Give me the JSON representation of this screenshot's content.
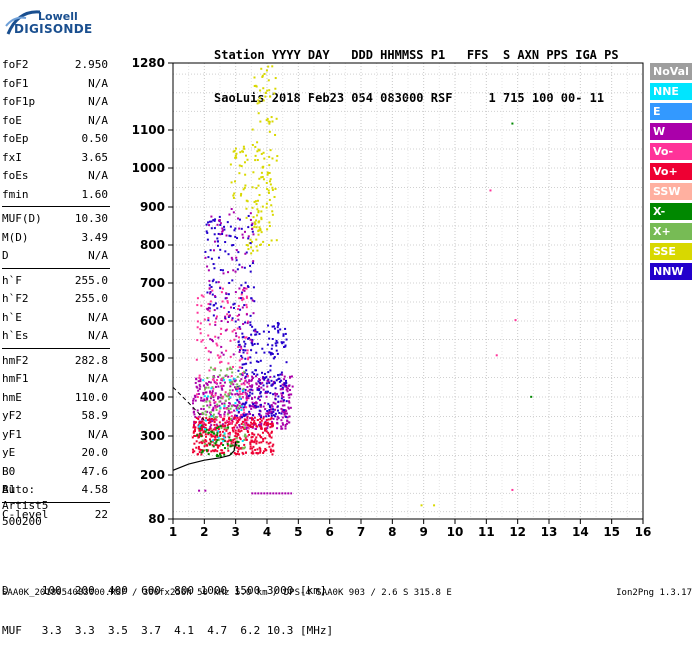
{
  "logo": {
    "line1": "Lowell",
    "line2": "DIGISONDE"
  },
  "header": {
    "line1": "Station YYYY DAY   DDD HHMMSS P1   FFS  S AXN PPS IGA PS",
    "line2": "SaoLuis 2018 Feb23 054 083000 RSF     1 715 100 00- 11"
  },
  "params": [
    {
      "name": "foF2",
      "value": "2.950"
    },
    {
      "name": "foF1",
      "value": "N/A"
    },
    {
      "name": "foF1p",
      "value": "N/A"
    },
    {
      "name": "foE",
      "value": "N/A"
    },
    {
      "name": "foEp",
      "value": "0.50"
    },
    {
      "name": "fxI",
      "value": "3.65"
    },
    {
      "name": "foEs",
      "value": "N/A"
    },
    {
      "name": "fmin",
      "value": "1.60"
    },
    {
      "name": "MUF(D)",
      "value": "10.30"
    },
    {
      "name": "M(D)",
      "value": "3.49"
    },
    {
      "name": "D",
      "value": "N/A"
    },
    {
      "name": "h`F",
      "value": "255.0"
    },
    {
      "name": "h`F2",
      "value": "255.0"
    },
    {
      "name": "h`E",
      "value": "N/A"
    },
    {
      "name": "h`Es",
      "value": "N/A"
    },
    {
      "name": "hmF2",
      "value": "282.8"
    },
    {
      "name": "hmF1",
      "value": "N/A"
    },
    {
      "name": "hmE",
      "value": "110.0"
    },
    {
      "name": "yF2",
      "value": "58.9"
    },
    {
      "name": "yF1",
      "value": "N/A"
    },
    {
      "name": "yE",
      "value": "20.0"
    },
    {
      "name": "B0",
      "value": "47.6"
    },
    {
      "name": "B1",
      "value": "4.58"
    },
    {
      "name": "C-level",
      "value": "22"
    }
  ],
  "artist": {
    "line1": "Auto:",
    "line2": "Artist5",
    "line3": "500200"
  },
  "legend": [
    {
      "label": "NoVal",
      "color": "#9e9e9e"
    },
    {
      "label": "NNE",
      "color": "#00e5ff"
    },
    {
      "label": "E",
      "color": "#3399ff"
    },
    {
      "label": "W",
      "color": "#aa00aa"
    },
    {
      "label": "Vo-",
      "color": "#ff3399"
    },
    {
      "label": "Vo+",
      "color": "#ee0033"
    },
    {
      "label": "SSW",
      "color": "#ffb0a0"
    },
    {
      "label": "X-",
      "color": "#008800"
    },
    {
      "label": "X+",
      "color": "#77bb55"
    },
    {
      "label": "SSE",
      "color": "#d8d800"
    },
    {
      "label": "NNW",
      "color": "#2200cc"
    }
  ],
  "muf_table": {
    "line1": "D     100  200  400  600  800 1000 1500 3000 [km]",
    "line2": "MUF   3.3  3.3  3.5  3.7  4.1  4.7  6.2 10.3 [MHz]"
  },
  "footer": "SAA0K_2018054083000.RSF / 300fx256h 50 kHz 5.0 km / DPS-4 SAA0K 903 / 2.6 S 315.8 E",
  "version": "Ion2Png 1.3.17",
  "chart_data": {
    "type": "scatter",
    "xlim": [
      1,
      16
    ],
    "ylim": [
      80,
      1280
    ],
    "xticks": [
      "1",
      "2",
      "3",
      "4",
      "5",
      "6",
      "7",
      "8",
      "9",
      "10",
      "11",
      "12",
      "13",
      "14",
      "15",
      "16"
    ],
    "yticks": [
      "80",
      "200",
      "300",
      "400",
      "500",
      "600",
      "700",
      "800",
      "900",
      "1000",
      "1100",
      "1280"
    ],
    "grid": true,
    "profile_curve": [
      [
        1.0,
        212
      ],
      [
        1.5,
        228
      ],
      [
        2.0,
        238
      ],
      [
        2.5,
        244
      ],
      [
        2.8,
        250
      ],
      [
        2.95,
        262
      ],
      [
        3.0,
        285
      ]
    ],
    "trace_curve": [
      [
        1.0,
        425
      ],
      [
        1.5,
        385
      ],
      [
        1.8,
        360
      ],
      [
        2.0,
        340
      ]
    ],
    "clusters": [
      {
        "direction": "SSE",
        "xmin": 3.5,
        "xmax": 4.3,
        "ymin": 800,
        "ymax": 1275,
        "count": 110
      },
      {
        "direction": "SSE",
        "xmin": 2.8,
        "xmax": 3.4,
        "ymin": 920,
        "ymax": 1060,
        "count": 30
      },
      {
        "direction": "SSE",
        "xmin": 3.3,
        "xmax": 3.8,
        "ymin": 780,
        "ymax": 920,
        "count": 40
      },
      {
        "direction": "W",
        "xmin": 1.6,
        "xmax": 4.8,
        "ymin": 320,
        "ymax": 460,
        "count": 420
      },
      {
        "direction": "NNW",
        "xmin": 3.0,
        "xmax": 4.6,
        "ymin": 350,
        "ymax": 600,
        "count": 220
      },
      {
        "direction": "Vo+",
        "xmin": 1.6,
        "xmax": 4.2,
        "ymin": 255,
        "ymax": 350,
        "count": 380
      },
      {
        "direction": "Vo-",
        "xmin": 1.7,
        "xmax": 3.4,
        "ymin": 300,
        "ymax": 700,
        "count": 160
      },
      {
        "direction": "X+",
        "xmin": 1.9,
        "xmax": 3.3,
        "ymin": 270,
        "ymax": 480,
        "count": 90
      },
      {
        "direction": "X-",
        "xmin": 1.6,
        "xmax": 3.1,
        "ymin": 250,
        "ymax": 330,
        "count": 50
      },
      {
        "direction": "NNW",
        "xmin": 2.0,
        "xmax": 3.6,
        "ymin": 600,
        "ymax": 880,
        "count": 110
      },
      {
        "direction": "W",
        "xmin": 2.0,
        "xmax": 3.6,
        "ymin": 500,
        "ymax": 900,
        "count": 90
      },
      {
        "direction": "NNE",
        "xmin": 1.8,
        "xmax": 3.2,
        "ymin": 280,
        "ymax": 450,
        "count": 30
      }
    ],
    "points": [
      {
        "x": 11.8,
        "y": 1120,
        "direction": "X-"
      },
      {
        "x": 11.1,
        "y": 945,
        "direction": "Vo-"
      },
      {
        "x": 11.9,
        "y": 605,
        "direction": "Vo-"
      },
      {
        "x": 11.3,
        "y": 510,
        "direction": "Vo-"
      },
      {
        "x": 12.4,
        "y": 403,
        "direction": "X-"
      },
      {
        "x": 11.8,
        "y": 162,
        "direction": "Vo-"
      },
      {
        "x": 8.9,
        "y": 120,
        "direction": "SSE"
      },
      {
        "x": 9.3,
        "y": 120,
        "direction": "SSE"
      },
      {
        "x": 1.8,
        "y": 160,
        "direction": "W"
      },
      {
        "x": 2.0,
        "y": 160,
        "direction": "W"
      }
    ],
    "segments": [
      {
        "direction": "W",
        "x1": 3.5,
        "x2": 4.8,
        "y": 150
      }
    ]
  }
}
